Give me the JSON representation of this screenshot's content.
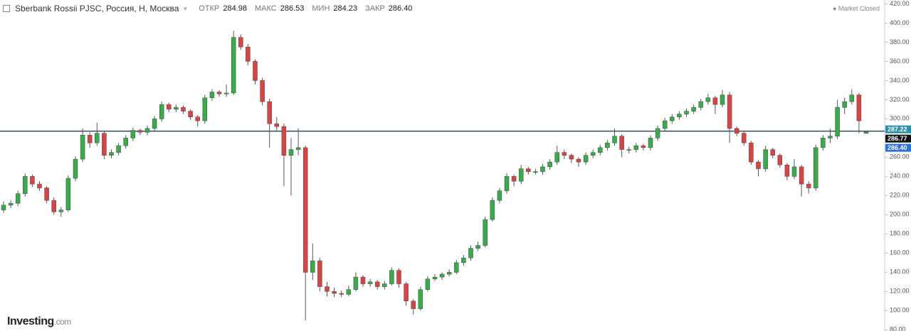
{
  "chart_data": {
    "type": "candlestick",
    "title": "Sberbank Rossii PJSC, Россия, H, Москва",
    "status": "Market Closed",
    "header": [
      {
        "label": "ОТКР",
        "value": "284.98"
      },
      {
        "label": "МАКС",
        "value": "286.53"
      },
      {
        "label": "МИН",
        "value": "284.23"
      },
      {
        "label": "ЗАКР",
        "value": "286.40"
      }
    ],
    "logo": {
      "name": "Investing",
      "suffix": ".com"
    },
    "up_color": "#3aaa4a",
    "down_color": "#d64545",
    "ylim": [
      79.5,
      424
    ],
    "yticks": [
      {
        "value": 80,
        "label": "80.00"
      },
      {
        "value": 100,
        "label": "100.00"
      },
      {
        "value": 120,
        "label": "120.00"
      },
      {
        "value": 140,
        "label": "140.00"
      },
      {
        "value": 160,
        "label": "160.00"
      },
      {
        "value": 180,
        "label": "180.00"
      },
      {
        "value": 200,
        "label": "200.00"
      },
      {
        "value": 220,
        "label": "220.00"
      },
      {
        "value": 240,
        "label": "240.00"
      },
      {
        "value": 260,
        "label": "260.00"
      },
      {
        "value": 280,
        "label": "280.00"
      },
      {
        "value": 300,
        "label": "300.00"
      },
      {
        "value": 320,
        "label": "320.00"
      },
      {
        "value": 340,
        "label": "340.00"
      },
      {
        "value": 360,
        "label": "360.00"
      },
      {
        "value": 380,
        "label": "380.00"
      },
      {
        "value": 400,
        "label": "400.00"
      },
      {
        "value": 420,
        "label": "420.00"
      }
    ],
    "hline": 287.22,
    "price_labels": [
      {
        "value": 287.22,
        "color": "#2d8fa5"
      },
      {
        "value": 286.77,
        "color": "#111111"
      },
      {
        "value": 286.4,
        "label": "286.40",
        "color": "#2f6fd6"
      }
    ],
    "ohlc": [
      [
        205,
        214,
        202,
        210
      ],
      [
        210,
        215,
        207,
        212
      ],
      [
        212,
        225,
        209,
        222
      ],
      [
        222,
        243,
        219,
        240
      ],
      [
        240,
        242,
        229,
        232
      ],
      [
        232,
        235,
        225,
        228
      ],
      [
        228,
        230,
        212,
        215
      ],
      [
        215,
        218,
        200,
        203
      ],
      [
        203,
        208,
        198,
        205
      ],
      [
        205,
        241,
        203,
        238
      ],
      [
        238,
        261,
        235,
        258
      ],
      [
        258,
        290,
        255,
        283
      ],
      [
        283,
        286,
        270,
        275
      ],
      [
        275,
        296,
        272,
        285
      ],
      [
        285,
        287,
        258,
        262
      ],
      [
        262,
        268,
        259,
        265
      ],
      [
        265,
        275,
        262,
        272
      ],
      [
        272,
        283,
        269,
        280
      ],
      [
        280,
        291,
        277,
        288
      ],
      [
        288,
        290,
        283,
        286
      ],
      [
        286,
        293,
        283,
        290
      ],
      [
        290,
        303,
        287,
        300
      ],
      [
        300,
        318,
        297,
        315
      ],
      [
        315,
        317,
        307,
        310
      ],
      [
        310,
        315,
        307,
        312
      ],
      [
        312,
        314,
        305,
        308
      ],
      [
        308,
        310,
        299,
        302
      ],
      [
        302,
        304,
        292,
        298
      ],
      [
        298,
        325,
        295,
        322
      ],
      [
        322,
        331,
        319,
        328
      ],
      [
        328,
        330,
        323,
        326
      ],
      [
        326,
        336,
        323,
        327
      ],
      [
        327,
        392,
        325,
        385
      ],
      [
        385,
        388,
        372,
        375
      ],
      [
        375,
        378,
        356,
        360
      ],
      [
        360,
        362,
        336,
        340
      ],
      [
        340,
        343,
        314,
        318
      ],
      [
        318,
        321,
        270,
        295
      ],
      [
        295,
        302,
        288,
        292
      ],
      [
        292,
        295,
        230,
        262
      ],
      [
        262,
        280,
        220,
        268
      ],
      [
        268,
        290,
        262,
        270
      ],
      [
        270,
        272,
        90,
        140
      ],
      [
        140,
        170,
        132,
        152
      ],
      [
        152,
        155,
        120,
        125
      ],
      [
        125,
        130,
        115,
        120
      ],
      [
        120,
        124,
        114,
        118
      ],
      [
        118,
        121,
        114,
        117
      ],
      [
        117,
        126,
        115,
        122
      ],
      [
        122,
        140,
        120,
        135
      ],
      [
        135,
        137,
        125,
        128
      ],
      [
        128,
        133,
        125,
        130
      ],
      [
        130,
        132,
        122,
        125
      ],
      [
        125,
        131,
        122,
        128
      ],
      [
        128,
        145,
        126,
        142
      ],
      [
        142,
        144,
        124,
        128
      ],
      [
        128,
        130,
        105,
        110
      ],
      [
        110,
        112,
        96,
        102
      ],
      [
        102,
        125,
        100,
        122
      ],
      [
        122,
        136,
        120,
        133
      ],
      [
        133,
        138,
        131,
        135
      ],
      [
        135,
        140,
        132,
        138
      ],
      [
        138,
        143,
        136,
        140
      ],
      [
        140,
        153,
        138,
        150
      ],
      [
        150,
        158,
        147,
        155
      ],
      [
        155,
        168,
        152,
        165
      ],
      [
        165,
        172,
        162,
        168
      ],
      [
        168,
        198,
        166,
        195
      ],
      [
        195,
        218,
        193,
        215
      ],
      [
        215,
        228,
        212,
        225
      ],
      [
        225,
        243,
        222,
        240
      ],
      [
        240,
        242,
        230,
        235
      ],
      [
        235,
        252,
        232,
        248
      ],
      [
        248,
        250,
        242,
        245
      ],
      [
        245,
        248,
        242,
        245
      ],
      [
        245,
        253,
        242,
        250
      ],
      [
        250,
        258,
        247,
        255
      ],
      [
        255,
        272,
        252,
        265
      ],
      [
        265,
        268,
        258,
        262
      ],
      [
        262,
        264,
        254,
        258
      ],
      [
        258,
        260,
        250,
        255
      ],
      [
        255,
        265,
        252,
        262
      ],
      [
        262,
        268,
        259,
        265
      ],
      [
        265,
        273,
        262,
        270
      ],
      [
        270,
        278,
        267,
        275
      ],
      [
        275,
        290,
        272,
        282
      ],
      [
        282,
        284,
        260,
        268
      ],
      [
        268,
        271,
        264,
        268
      ],
      [
        268,
        275,
        265,
        272
      ],
      [
        272,
        274,
        267,
        270
      ],
      [
        270,
        283,
        267,
        280
      ],
      [
        280,
        293,
        277,
        290
      ],
      [
        290,
        301,
        287,
        298
      ],
      [
        298,
        305,
        295,
        302
      ],
      [
        302,
        308,
        299,
        305
      ],
      [
        305,
        311,
        302,
        308
      ],
      [
        308,
        315,
        305,
        312
      ],
      [
        312,
        321,
        309,
        318
      ],
      [
        318,
        326,
        315,
        322
      ],
      [
        322,
        324,
        305,
        315
      ],
      [
        315,
        330,
        312,
        325
      ],
      [
        325,
        328,
        275,
        290
      ],
      [
        290,
        292,
        282,
        285
      ],
      [
        285,
        287,
        272,
        275
      ],
      [
        275,
        277,
        252,
        255
      ],
      [
        255,
        257,
        240,
        248
      ],
      [
        248,
        272,
        245,
        268
      ],
      [
        268,
        270,
        259,
        262
      ],
      [
        262,
        264,
        249,
        252
      ],
      [
        252,
        254,
        236,
        240
      ],
      [
        240,
        258,
        237,
        250
      ],
      [
        250,
        252,
        219,
        232
      ],
      [
        232,
        235,
        222,
        228
      ],
      [
        228,
        273,
        225,
        270
      ],
      [
        270,
        283,
        267,
        280
      ],
      [
        280,
        290,
        275,
        282
      ],
      [
        282,
        320,
        279,
        312
      ],
      [
        312,
        322,
        305,
        318
      ],
      [
        318,
        331,
        315,
        325
      ],
      [
        325,
        327,
        285,
        298
      ],
      [
        284.98,
        286.53,
        284.23,
        286.4
      ]
    ]
  }
}
